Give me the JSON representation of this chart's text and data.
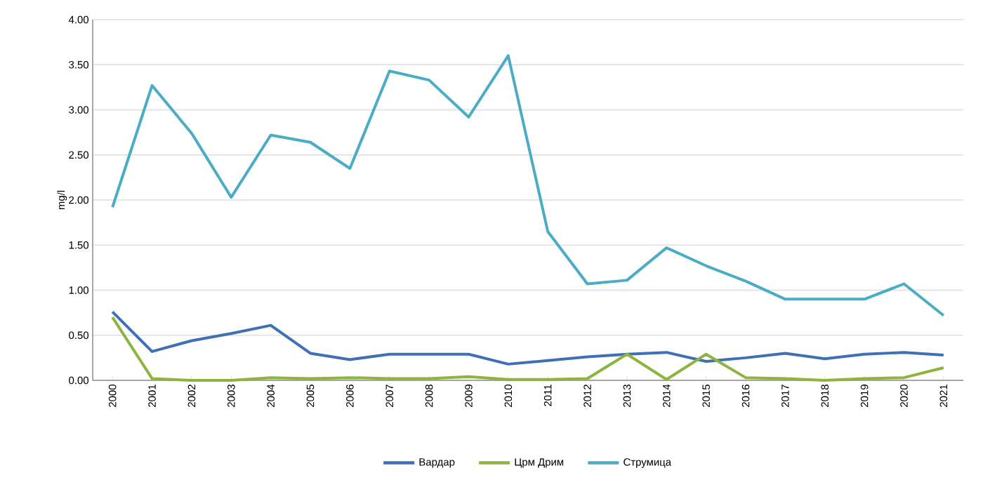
{
  "chart_data": {
    "type": "line",
    "ylabel": "mg/l",
    "categories": [
      "2000",
      "2001",
      "2002",
      "2003",
      "2004",
      "2005",
      "2006",
      "2007",
      "2008",
      "2009",
      "2010",
      "2011",
      "2012",
      "2013",
      "2014",
      "2015",
      "2016",
      "2017",
      "2018",
      "2019",
      "2020",
      "2021"
    ],
    "series": [
      {
        "name": "Вардар",
        "color": "#3f6fb5",
        "values": [
          0.76,
          0.32,
          0.44,
          0.52,
          0.61,
          0.3,
          0.23,
          0.29,
          0.29,
          0.29,
          0.18,
          0.22,
          0.26,
          0.29,
          0.31,
          0.21,
          0.25,
          0.3,
          0.24,
          0.29,
          0.31,
          0.28
        ]
      },
      {
        "name": "Црм Дрим",
        "color": "#8db43c",
        "values": [
          0.7,
          0.02,
          0.0,
          0.0,
          0.03,
          0.02,
          0.03,
          0.02,
          0.02,
          0.04,
          0.01,
          0.01,
          0.02,
          0.29,
          0.01,
          0.29,
          0.03,
          0.02,
          0.0,
          0.02,
          0.03,
          0.14
        ]
      },
      {
        "name": "Струмица",
        "color": "#4bacc6",
        "values": [
          1.92,
          3.27,
          2.74,
          2.03,
          2.72,
          2.64,
          2.35,
          3.43,
          3.33,
          2.92,
          3.6,
          1.65,
          1.07,
          1.11,
          1.47,
          1.27,
          1.1,
          0.9,
          0.9,
          0.9,
          1.07,
          0.72
        ]
      }
    ],
    "ylim": [
      0,
      4
    ],
    "yticks": [
      {
        "value": 0,
        "label": "0.00"
      },
      {
        "value": 0.5,
        "label": "0.50"
      },
      {
        "value": 1,
        "label": "1.00"
      },
      {
        "value": 1.5,
        "label": "1.50"
      },
      {
        "value": 2,
        "label": "2.00"
      },
      {
        "value": 2.5,
        "label": "2.50"
      },
      {
        "value": 3,
        "label": "3.00"
      },
      {
        "value": 3.5,
        "label": "3.50"
      },
      {
        "value": 4,
        "label": "4.00"
      }
    ],
    "grid": "y",
    "legend": "bottom",
    "marker": "none",
    "line_style": "solid"
  }
}
